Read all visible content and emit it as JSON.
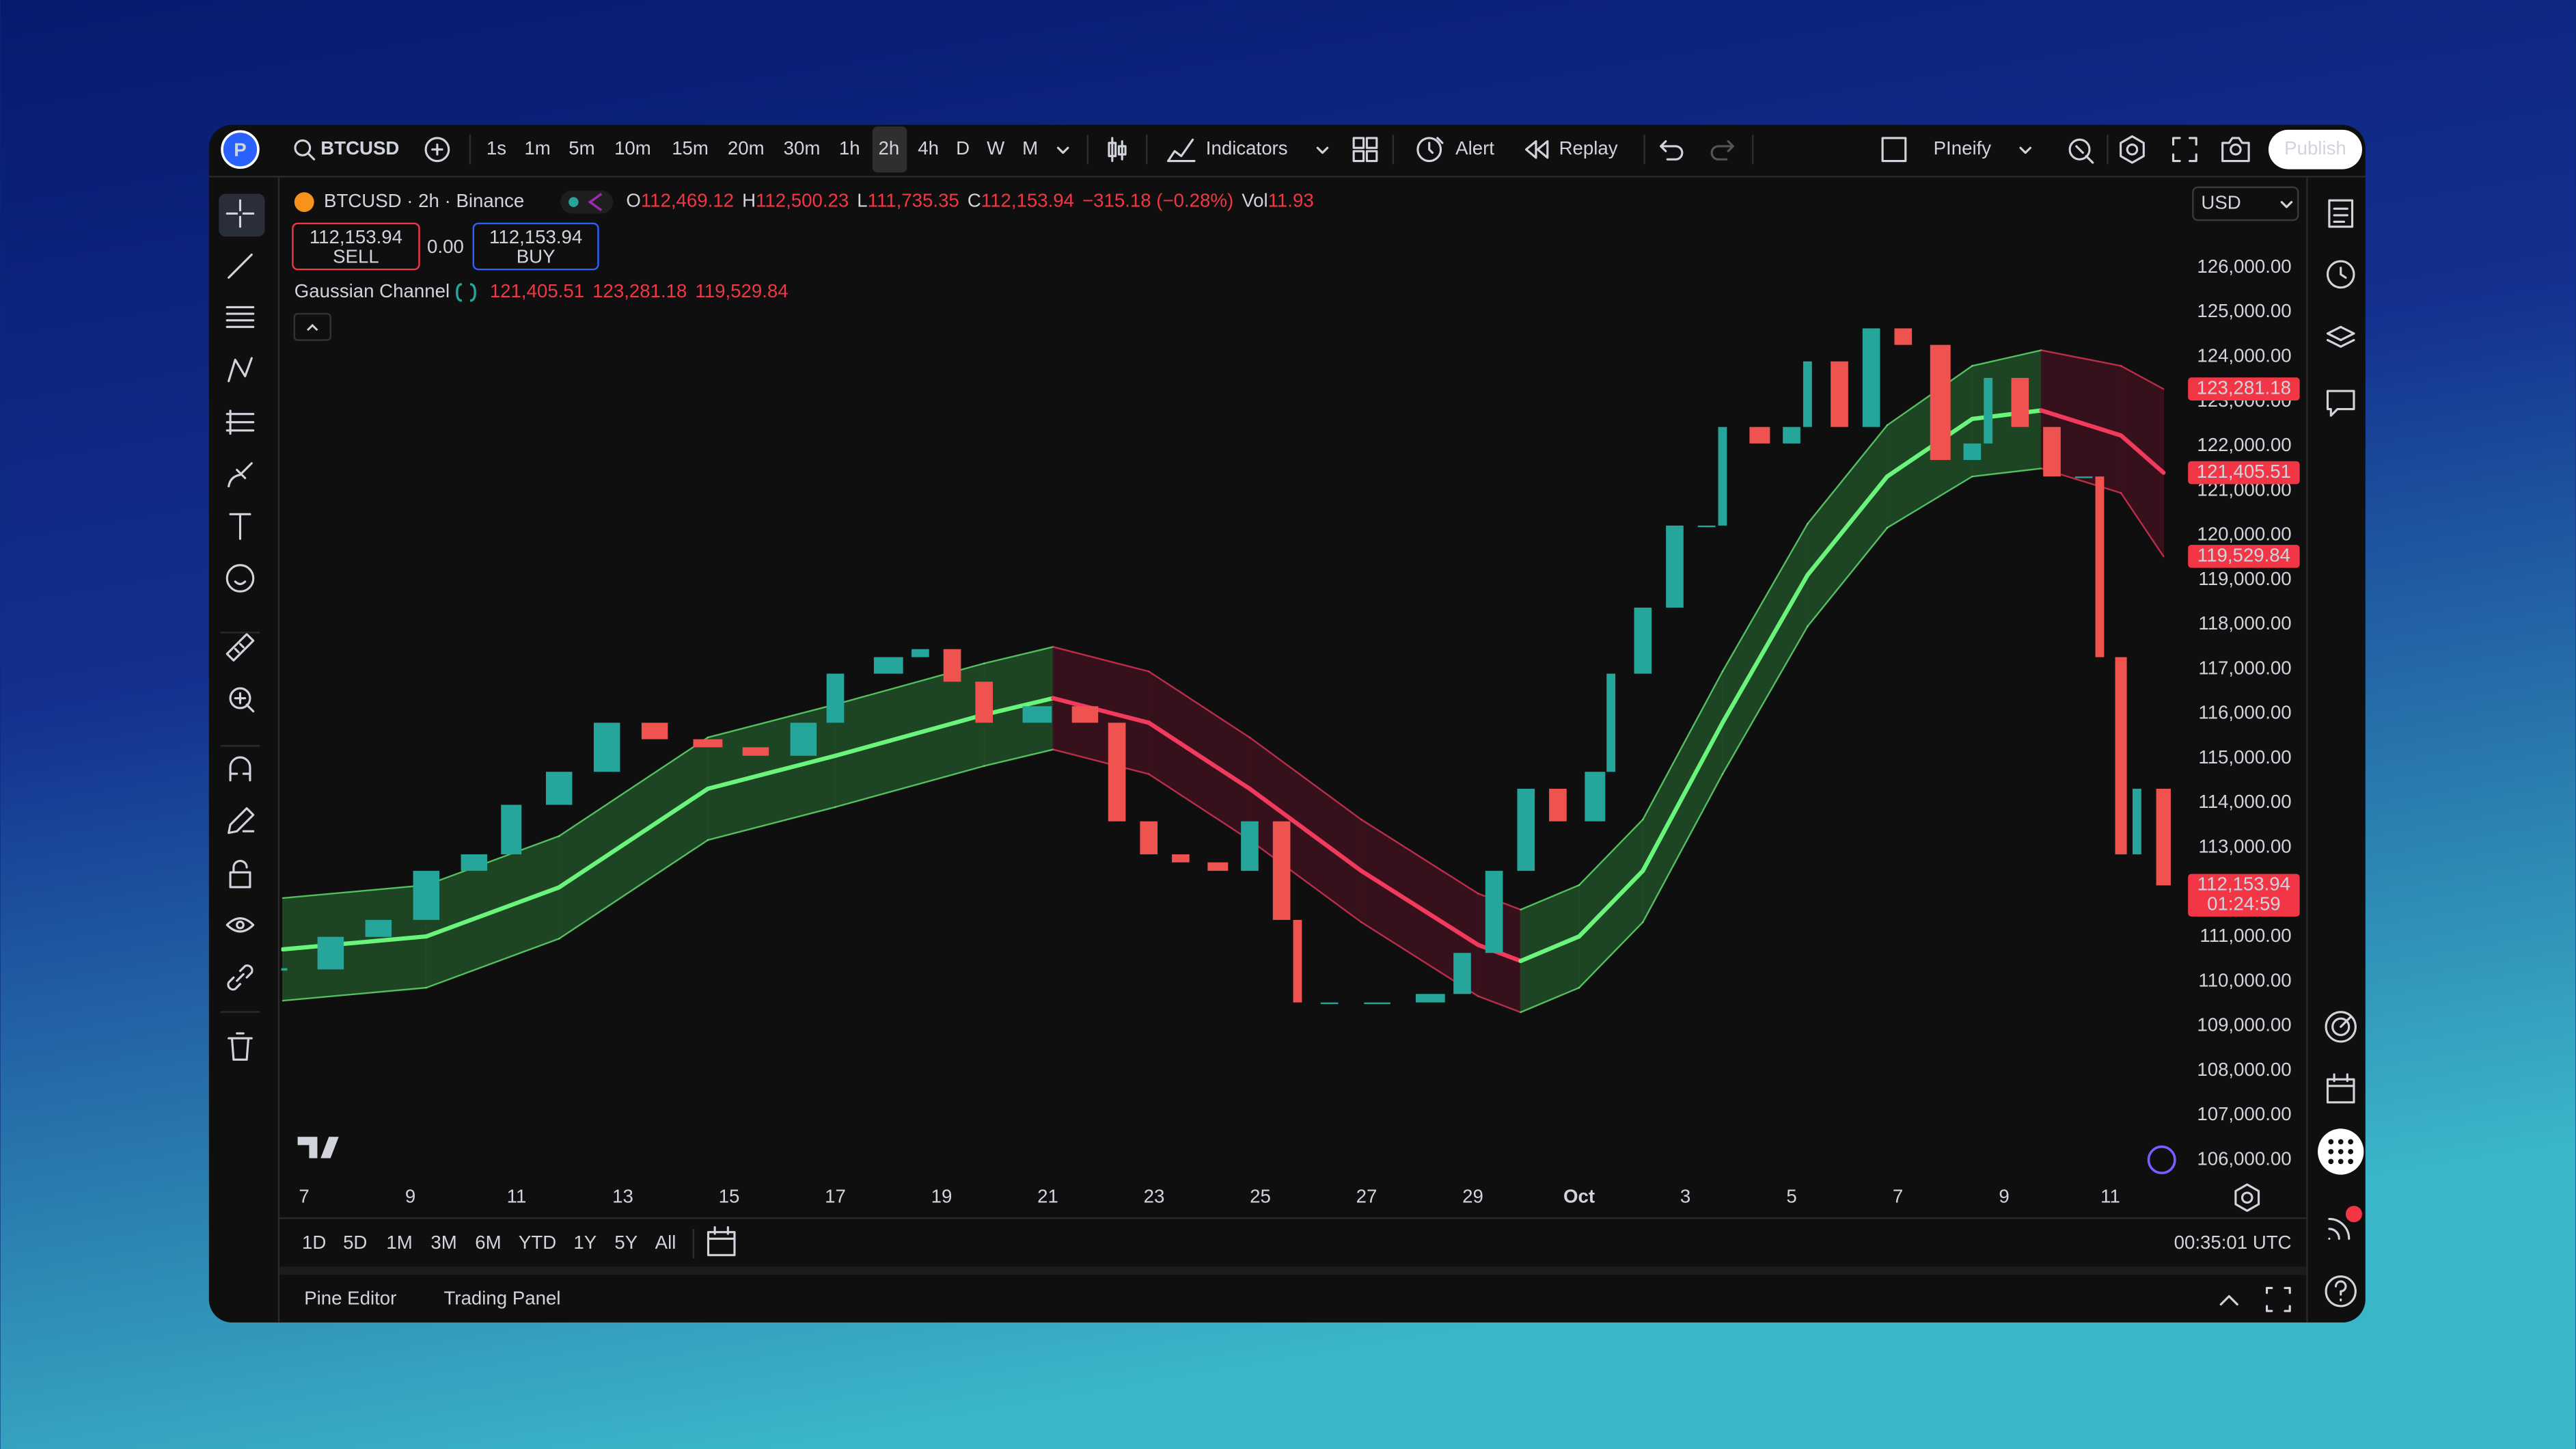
{
  "toolbar": {
    "logo": "P",
    "symbol": "BTCUSD",
    "timeframes": [
      "1s",
      "1m",
      "5m",
      "10m",
      "15m",
      "20m",
      "30m",
      "1h",
      "2h",
      "4h",
      "D",
      "W",
      "M"
    ],
    "indicators": "Indicators",
    "alert": "Alert",
    "replay": "Replay",
    "layout": "PIneify",
    "publish": "Publish"
  },
  "legend": {
    "title": "BTCUSD · 2h · Binance",
    "ohlc": [
      {
        "key": "O",
        "value": "112,469.12"
      },
      {
        "key": "H",
        "value": "112,500.23"
      },
      {
        "key": "L",
        "value": "111,735.35"
      },
      {
        "key": "C",
        "value": "112,153.94"
      }
    ],
    "change": "−315.18 (−0.28%)",
    "vol_key": "Vol",
    "vol": "11.93",
    "sell": {
      "price": "112,153.94",
      "label": "SELL"
    },
    "spread": "0.00",
    "buy": {
      "price": "112,153.94",
      "label": "BUY"
    },
    "indicator": {
      "name": "Gaussian Channel",
      "values": [
        "121,405.51",
        "123,281.18",
        "119,529.84"
      ]
    }
  },
  "currency": "USD",
  "chart_data": {
    "type": "candlestick",
    "x": [
      6.6,
      7.5,
      8.4,
      9.3,
      10.2,
      10.9,
      11.8,
      12.7,
      13.6,
      14.6,
      15.5,
      16.4,
      17.0,
      18.0,
      18.6,
      19.2,
      19.8,
      20.8,
      21.7,
      22.3,
      22.9,
      23.5,
      24.2,
      24.8,
      25.4,
      25.7,
      26.3,
      27.2,
      28.2,
      28.8,
      29.4,
      30.0,
      30.6,
      31.3,
      31.6,
      32.2,
      32.8,
      33.4,
      33.7,
      34.4,
      35.0,
      35.3,
      35.9,
      36.5,
      37.1,
      37.8,
      38.4,
      38.7,
      39.3,
      39.9,
      40.5,
      40.8,
      41.2,
      41.5,
      42.0
    ],
    "values": [
      110270,
      111000,
      111380,
      112480,
      112850,
      113960,
      114700,
      115800,
      115430,
      115250,
      115060,
      115800,
      116900,
      117270,
      117450,
      116720,
      115800,
      116170,
      115800,
      113590,
      112850,
      112670,
      112480,
      113590,
      111380,
      109530,
      109530,
      109530,
      109720,
      110640,
      112480,
      114320,
      113590,
      114700,
      116900,
      118380,
      120220,
      120220,
      122430,
      122060,
      122430,
      123900,
      122430,
      124640,
      124270,
      121690,
      122060,
      123530,
      122430,
      121320,
      121320,
      117270,
      112850,
      114320,
      112153.94
    ],
    "up_color": "#26a69a",
    "down_color": "#ef5350",
    "channel": {
      "x": [
        6.6,
        9.3,
        11.8,
        14.6,
        17.0,
        19.8,
        21.1,
        22.9,
        24.8,
        26.9,
        29.1,
        29.9,
        31.0,
        32.2,
        33.7,
        35.3,
        36.8,
        38.4,
        39.7,
        41.2,
        42.0
      ],
      "mid": [
        110720,
        111010,
        112110,
        114320,
        115060,
        115980,
        116350,
        115800,
        114320,
        112480,
        110820,
        110460,
        111010,
        112480,
        115800,
        119110,
        121320,
        122610,
        122800,
        122240,
        121405.51
      ],
      "upper": [
        111870,
        112160,
        113260,
        115470,
        116210,
        117130,
        117500,
        116950,
        115470,
        113630,
        111970,
        111610,
        112160,
        113630,
        116950,
        120260,
        122470,
        123800,
        124150,
        123800,
        123281.18
      ],
      "lower": [
        109570,
        109860,
        110960,
        113170,
        113910,
        114830,
        115200,
        114650,
        113170,
        111330,
        109670,
        109310,
        109860,
        111330,
        114650,
        117960,
        120170,
        121320,
        121500,
        120950,
        119529.84
      ],
      "rise_color": "#6bf47b",
      "fall_color": "#f23a5d",
      "rise_fill": "#1f4a26",
      "fall_fill": "#3b121d"
    },
    "xlim": [
      6.57,
      42.4
    ],
    "xticks": [
      7,
      9,
      11,
      13,
      15,
      17,
      19,
      21,
      23,
      25,
      27,
      29,
      {
        "value": 31,
        "label": "Oct"
      },
      {
        "value": 33,
        "label": "3"
      },
      {
        "value": 35,
        "label": "5"
      },
      {
        "value": 37,
        "label": "7"
      },
      {
        "value": 39,
        "label": "9"
      },
      {
        "value": 41,
        "label": "11"
      }
    ],
    "ylim": [
      105670,
      127950
    ],
    "yticks": [
      {
        "value": 106000,
        "label": "106,000.00"
      },
      {
        "value": 107000,
        "label": "107,000.00"
      },
      {
        "value": 108000,
        "label": "108,000.00"
      },
      {
        "value": 109000,
        "label": "109,000.00"
      },
      {
        "value": 110000,
        "label": "110,000.00"
      },
      {
        "value": 111000,
        "label": "111,000.00"
      },
      {
        "value": 112000,
        "label": "112,000.00"
      },
      {
        "value": 113000,
        "label": "113,000.00"
      },
      {
        "value": 114000,
        "label": "114,000.00"
      },
      {
        "value": 115000,
        "label": "115,000.00"
      },
      {
        "value": 116000,
        "label": "116,000.00"
      },
      {
        "value": 117000,
        "label": "117,000.00"
      },
      {
        "value": 118000,
        "label": "118,000.00"
      },
      {
        "value": 119000,
        "label": "119,000.00"
      },
      {
        "value": 120000,
        "label": "120,000.00"
      },
      {
        "value": 121000,
        "label": "121,000.00"
      },
      {
        "value": 122000,
        "label": "122,000.00"
      },
      {
        "value": 123000,
        "label": "123,000.00"
      },
      {
        "value": 124000,
        "label": "124,000.00"
      },
      {
        "value": 125000,
        "label": "125,000.00"
      },
      {
        "value": 126000,
        "label": "126,000.00"
      }
    ],
    "grid": false,
    "price_labels": [
      {
        "value": 123281.18,
        "label": "123,281.18",
        "color": "#f23645"
      },
      {
        "value": 121405.51,
        "label": "121,405.51",
        "color": "#f23645"
      },
      {
        "value": 119529.84,
        "label": "119,529.84",
        "color": "#f23645"
      },
      {
        "value": 112153.94,
        "label": "112,153.94",
        "countdown": "01:24:59",
        "color": "#f23645"
      }
    ]
  },
  "range_buttons": [
    "1D",
    "5D",
    "1M",
    "3M",
    "6M",
    "YTD",
    "1Y",
    "5Y",
    "All"
  ],
  "clock": "00:35:01 UTC",
  "panels": [
    "Pine Editor",
    "Trading Panel"
  ]
}
